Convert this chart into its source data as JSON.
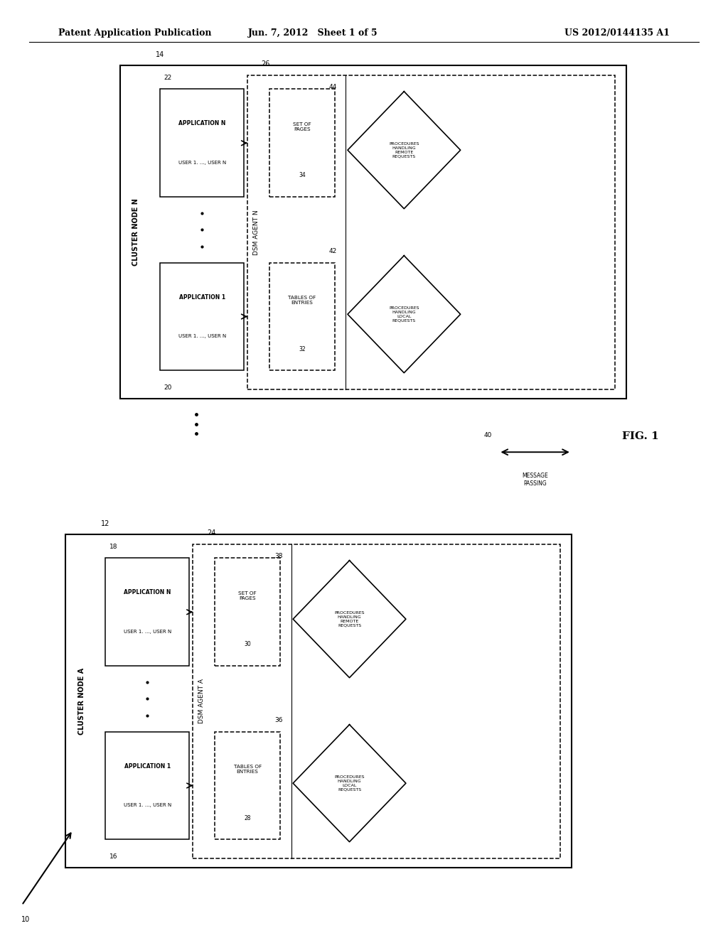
{
  "bg_color": "#ffffff",
  "header_left": "Patent Application Publication",
  "header_center": "Jun. 7, 2012   Sheet 1 of 5",
  "header_right": "US 2012/0144135 A1",
  "fig_label": "FIG. 1"
}
